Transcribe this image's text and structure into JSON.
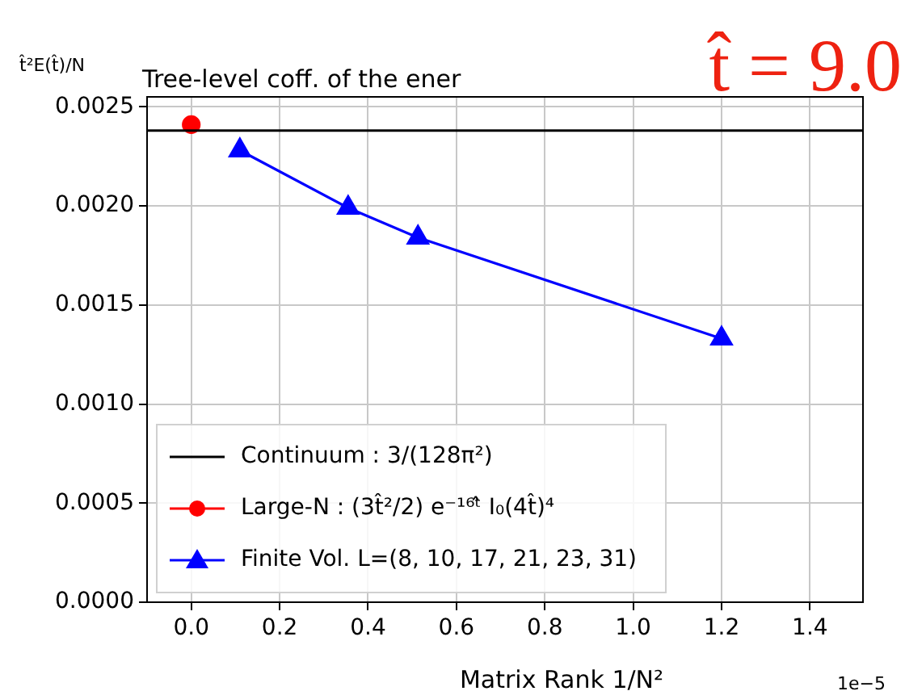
{
  "chart_data": {
    "type": "line",
    "title": "Tree-level coff. of the ener",
    "ylabel": "t̂²E(t̂)/N",
    "xlabel": "Matrix Rank 1/N²",
    "annotations": [
      "t̂ = 9.0",
      "1e−5"
    ],
    "xlim": [
      -0.1,
      1.52
    ],
    "xticks": [
      {
        "value": 0,
        "label": "0.0"
      },
      {
        "value": 0.2,
        "label": "0.2"
      },
      {
        "value": 0.4,
        "label": "0.4"
      },
      {
        "value": 0.6,
        "label": "0.6"
      },
      {
        "value": 0.8,
        "label": "0.8"
      },
      {
        "value": 1,
        "label": "1.0"
      },
      {
        "value": 1.2,
        "label": "1.2"
      },
      {
        "value": 1.4,
        "label": "1.4"
      }
    ],
    "ylim": [
      0,
      0.00255
    ],
    "yticks": [
      {
        "value": 0,
        "label": "0.0000"
      },
      {
        "value": 0.0005,
        "label": "0.0005"
      },
      {
        "value": 0.001,
        "label": "0.0010"
      },
      {
        "value": 0.0015,
        "label": "0.0015"
      },
      {
        "value": 0.002,
        "label": "0.0020"
      },
      {
        "value": 0.0025,
        "label": "0.0025"
      }
    ],
    "grid": true,
    "legend": "bottom left",
    "series": [
      {
        "name": "Continuum : 3/(128π²)",
        "color": "#000000",
        "marker": "none",
        "x": [
          -0.1,
          1.52
        ],
        "values": [
          0.00238,
          0.00238
        ]
      },
      {
        "name": "Large-N : (3t̂²/2) e⁻¹⁶ᵗ̂ I₀(4t̂)⁴",
        "color": "#ff0000",
        "type": "scatter",
        "marker": "circle",
        "x": [
          0
        ],
        "values": [
          0.00241
        ]
      },
      {
        "name": "Finite Vol. L=(8, 10, 17, 21, 23, 31)",
        "color": "#0000ff",
        "marker": "triangle",
        "x": [
          0.11,
          0.355,
          0.513,
          1.2
        ],
        "values": [
          0.00228,
          0.00199,
          0.00184,
          0.00133
        ]
      }
    ]
  }
}
